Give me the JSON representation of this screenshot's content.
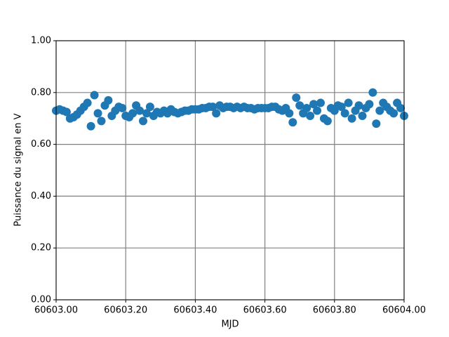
{
  "chart_data": {
    "type": "scatter",
    "x_label": "MJD",
    "y_label": "Puissance du signal en V",
    "series": [
      {
        "color": "#1f77b4",
        "x": [
          60603.0,
          60603.01,
          60603.02,
          60603.03,
          60603.04,
          60603.05,
          60603.06,
          60603.07,
          60603.08,
          60603.09,
          60603.1,
          60603.11,
          60603.12,
          60603.13,
          60603.14,
          60603.15,
          60603.16,
          60603.17,
          60603.18,
          60603.19,
          60603.2,
          60603.21,
          60603.22,
          60603.23,
          60603.24,
          60603.25,
          60603.26,
          60603.27,
          60603.28,
          60603.29,
          60603.3,
          60603.31,
          60603.32,
          60603.33,
          60603.34,
          60603.35,
          60603.36,
          60603.37,
          60603.38,
          60603.39,
          60603.4,
          60603.41,
          60603.42,
          60603.43,
          60603.44,
          60603.45,
          60603.46,
          60603.47,
          60603.48,
          60603.49,
          60603.5,
          60603.51,
          60603.52,
          60603.53,
          60603.54,
          60603.55,
          60603.56,
          60603.57,
          60603.58,
          60603.59,
          60603.6,
          60603.61,
          60603.62,
          60603.63,
          60603.64,
          60603.65,
          60603.66,
          60603.67,
          60603.68,
          60603.69,
          60603.7,
          60603.71,
          60603.72,
          60603.73,
          60603.74,
          60603.75,
          60603.76,
          60603.77,
          60603.78,
          60603.79,
          60603.8,
          60603.81,
          60603.82,
          60603.83,
          60603.84,
          60603.85,
          60603.86,
          60603.87,
          60603.88,
          60603.89,
          60603.9,
          60603.91,
          60603.92,
          60603.93,
          60603.94,
          60603.95,
          60603.96,
          60603.97,
          60603.98,
          60603.99,
          60604.0
        ],
        "values": [
          0.73,
          0.735,
          0.73,
          0.725,
          0.7,
          0.705,
          0.715,
          0.73,
          0.745,
          0.76,
          0.67,
          0.79,
          0.72,
          0.69,
          0.75,
          0.77,
          0.71,
          0.73,
          0.745,
          0.74,
          0.71,
          0.705,
          0.72,
          0.75,
          0.73,
          0.69,
          0.72,
          0.745,
          0.71,
          0.725,
          0.72,
          0.73,
          0.72,
          0.735,
          0.725,
          0.72,
          0.725,
          0.73,
          0.73,
          0.735,
          0.735,
          0.735,
          0.74,
          0.74,
          0.745,
          0.745,
          0.72,
          0.75,
          0.74,
          0.745,
          0.745,
          0.74,
          0.745,
          0.74,
          0.745,
          0.74,
          0.74,
          0.735,
          0.74,
          0.74,
          0.74,
          0.74,
          0.745,
          0.745,
          0.735,
          0.73,
          0.74,
          0.72,
          0.685,
          0.78,
          0.75,
          0.72,
          0.74,
          0.71,
          0.755,
          0.73,
          0.76,
          0.7,
          0.69,
          0.74,
          0.73,
          0.75,
          0.745,
          0.72,
          0.76,
          0.7,
          0.73,
          0.75,
          0.71,
          0.74,
          0.755,
          0.8,
          0.68,
          0.73,
          0.76,
          0.745,
          0.73,
          0.72,
          0.76,
          0.74,
          0.71
        ]
      }
    ],
    "xlim": [
      60603,
      60604
    ],
    "xticks": [
      {
        "value": 60603,
        "label": "60603.00"
      },
      {
        "value": 60603.2,
        "label": "60603.20"
      },
      {
        "value": 60603.4,
        "label": "60603.40"
      },
      {
        "value": 60603.6,
        "label": "60603.60"
      },
      {
        "value": 60603.8,
        "label": "60603.80"
      },
      {
        "value": 60604,
        "label": "60604.00"
      }
    ],
    "ylim": [
      0,
      1
    ],
    "yticks": [
      {
        "value": 0,
        "label": "0.00"
      },
      {
        "value": 0.2,
        "label": "0.20"
      },
      {
        "value": 0.4,
        "label": "0.40"
      },
      {
        "value": 0.6,
        "label": "0.60"
      },
      {
        "value": 0.8,
        "label": "0.80"
      },
      {
        "value": 1,
        "label": "1.00"
      }
    ],
    "grid": true
  }
}
